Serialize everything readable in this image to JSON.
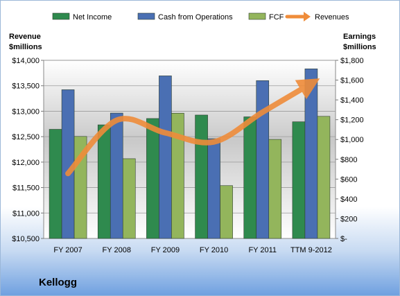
{
  "company_name": "Kellogg",
  "colors": {
    "net_income": "#2f8a4e",
    "cash_from_operations": "#4a6fb3",
    "fcf": "#93b55c",
    "revenues": "#ef8c3a"
  },
  "chart_data": {
    "type": "bar",
    "categories": [
      "FY 2007",
      "FY 2008",
      "FY 2009",
      "FY 2010",
      "FY 2011",
      "TTM 9-2012"
    ],
    "series": [
      {
        "name": "Net Income",
        "axis": "right",
        "values": [
          1103,
          1148,
          1212,
          1247,
          1229,
          1179
        ]
      },
      {
        "name": "Cash from Operations",
        "axis": "right",
        "values": [
          1503,
          1267,
          1643,
          1008,
          1595,
          1714
        ]
      },
      {
        "name": "FCF",
        "axis": "right",
        "values": [
          1031,
          806,
          1266,
          534,
          1001,
          1234
        ]
      }
    ],
    "line_series": {
      "name": "Revenues",
      "axis": "left",
      "values": [
        11776,
        12822,
        12575,
        12397,
        12981,
        13545
      ]
    },
    "left_axis": {
      "title_line1": "Revenue",
      "title_line2": "$millions",
      "min": 10500,
      "max": 14000,
      "step": 500,
      "tick_labels": [
        "$10,500",
        "$11,000",
        "$11,500",
        "$12,000",
        "$12,500",
        "$13,000",
        "$13,500",
        "$14,000"
      ]
    },
    "right_axis": {
      "title_line1": "Earnings",
      "title_line2": "$millions",
      "min": 0,
      "max": 1800,
      "step": 200,
      "tick_labels": [
        "$-",
        "$200",
        "$400",
        "$600",
        "$800",
        "$1,000",
        "$1,200",
        "$1,400",
        "$1,600",
        "$1,800"
      ]
    },
    "legend_position": "top",
    "grid": true
  }
}
